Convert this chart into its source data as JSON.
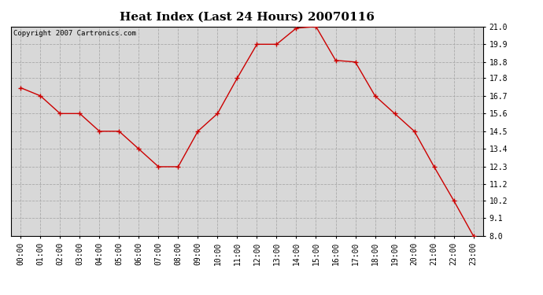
{
  "title": "Heat Index (Last 24 Hours) 20070116",
  "copyright_text": "Copyright 2007 Cartronics.com",
  "x_labels": [
    "00:00",
    "01:00",
    "02:00",
    "03:00",
    "04:00",
    "05:00",
    "06:00",
    "07:00",
    "08:00",
    "09:00",
    "10:00",
    "11:00",
    "12:00",
    "13:00",
    "14:00",
    "15:00",
    "16:00",
    "17:00",
    "18:00",
    "19:00",
    "20:00",
    "21:00",
    "22:00",
    "23:00"
  ],
  "y_vals": [
    17.2,
    16.7,
    15.6,
    15.6,
    14.5,
    14.5,
    13.4,
    12.3,
    12.3,
    14.5,
    15.6,
    17.8,
    19.9,
    19.9,
    20.9,
    21.0,
    18.9,
    18.8,
    16.7,
    15.6,
    14.5,
    12.3,
    10.2,
    8.0
  ],
  "line_color": "#cc0000",
  "marker": "+",
  "marker_size": 5,
  "marker_color": "#cc0000",
  "background_color": "#ffffff",
  "plot_bg_color": "#d8d8d8",
  "grid_color": "#aaaaaa",
  "ylim": [
    8.0,
    21.0
  ],
  "y_ticks": [
    8.0,
    9.1,
    10.2,
    11.2,
    12.3,
    13.4,
    14.5,
    15.6,
    16.7,
    17.8,
    18.8,
    19.9,
    21.0
  ],
  "title_fontsize": 11,
  "copyright_fontsize": 6.5,
  "tick_fontsize": 7
}
